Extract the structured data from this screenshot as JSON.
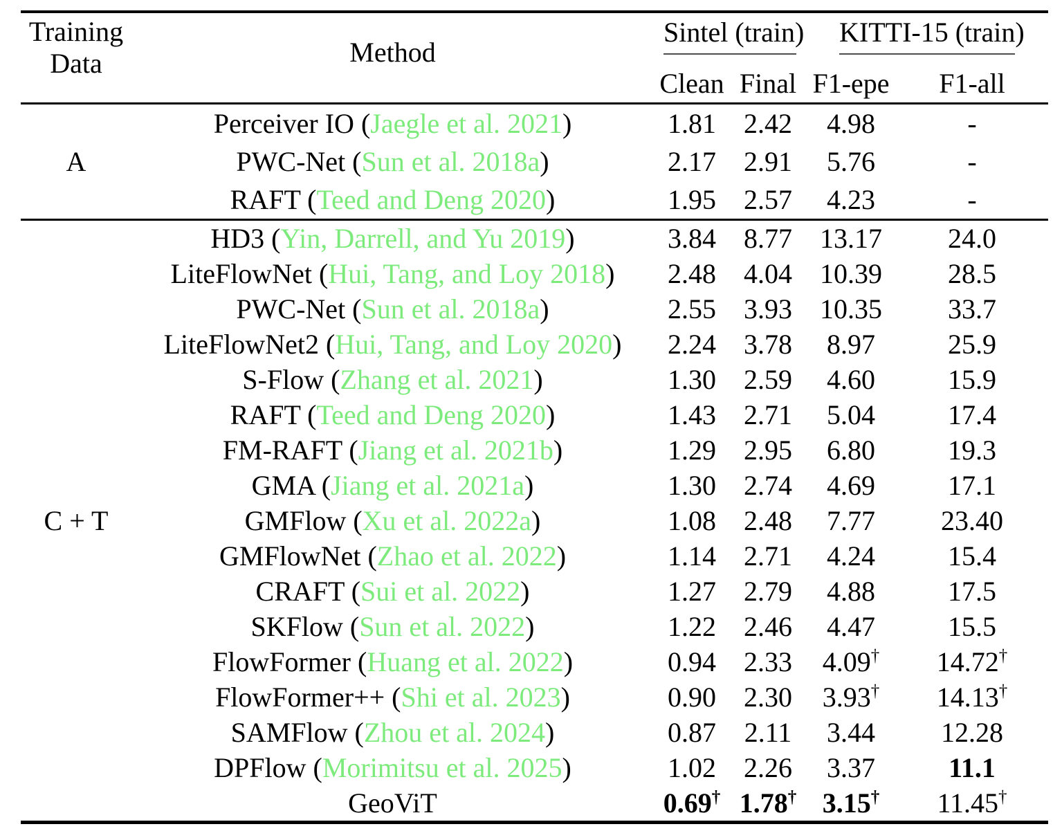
{
  "colors": {
    "citation": "#7CEB7C",
    "text": "#000000",
    "rule": "#000000"
  },
  "header": {
    "training_line1": "Training",
    "training_line2": "Data",
    "method": "Method",
    "groups": [
      {
        "label": "Sintel (train)"
      },
      {
        "label": "KITTI-15 (train)"
      }
    ],
    "sub_headers": [
      "Clean",
      "Final",
      "F1-epe",
      "F1-all"
    ]
  },
  "table": {
    "sections": [
      {
        "label": "A",
        "rows": [
          {
            "method_pre": "Perceiver IO (",
            "citation": "Jaegle et al. 2021",
            "method_post": ")",
            "values": [
              {
                "t": "1.81"
              },
              {
                "t": "2.42"
              },
              {
                "t": "4.98"
              },
              {
                "t": "-"
              }
            ]
          },
          {
            "method_pre": "PWC-Net (",
            "citation": "Sun et al. 2018a",
            "method_post": ")",
            "values": [
              {
                "t": "2.17"
              },
              {
                "t": "2.91"
              },
              {
                "t": "5.76"
              },
              {
                "t": "-"
              }
            ]
          },
          {
            "method_pre": "RAFT (",
            "citation": "Teed and Deng 2020",
            "method_post": ")",
            "values": [
              {
                "t": "1.95"
              },
              {
                "t": "2.57"
              },
              {
                "t": "4.23"
              },
              {
                "t": "-"
              }
            ]
          }
        ]
      },
      {
        "label": "C + T",
        "rows": [
          {
            "method_pre": "HD3 (",
            "citation": "Yin, Darrell, and Yu 2019",
            "method_post": ")",
            "values": [
              {
                "t": "3.84"
              },
              {
                "t": "8.77"
              },
              {
                "t": "13.17"
              },
              {
                "t": "24.0"
              }
            ]
          },
          {
            "method_pre": "LiteFlowNet (",
            "citation": "Hui, Tang, and Loy 2018",
            "method_post": ")",
            "values": [
              {
                "t": "2.48"
              },
              {
                "t": "4.04"
              },
              {
                "t": "10.39"
              },
              {
                "t": "28.5"
              }
            ]
          },
          {
            "method_pre": "PWC-Net (",
            "citation": "Sun et al. 2018a",
            "method_post": ")",
            "values": [
              {
                "t": "2.55"
              },
              {
                "t": "3.93"
              },
              {
                "t": "10.35"
              },
              {
                "t": "33.7"
              }
            ]
          },
          {
            "method_pre": "LiteFlowNet2 (",
            "citation": "Hui, Tang, and Loy 2020",
            "method_post": ")",
            "values": [
              {
                "t": "2.24"
              },
              {
                "t": "3.78"
              },
              {
                "t": "8.97"
              },
              {
                "t": "25.9"
              }
            ]
          },
          {
            "method_pre": "S-Flow (",
            "citation": "Zhang et al. 2021",
            "method_post": ")",
            "values": [
              {
                "t": "1.30"
              },
              {
                "t": "2.59"
              },
              {
                "t": "4.60"
              },
              {
                "t": "15.9"
              }
            ]
          },
          {
            "method_pre": "RAFT (",
            "citation": "Teed and Deng 2020",
            "method_post": ")",
            "values": [
              {
                "t": "1.43"
              },
              {
                "t": "2.71"
              },
              {
                "t": "5.04"
              },
              {
                "t": "17.4"
              }
            ]
          },
          {
            "method_pre": "FM-RAFT (",
            "citation": "Jiang et al. 2021b",
            "method_post": ")",
            "values": [
              {
                "t": "1.29"
              },
              {
                "t": "2.95"
              },
              {
                "t": "6.80"
              },
              {
                "t": "19.3"
              }
            ]
          },
          {
            "method_pre": "GMA (",
            "citation": "Jiang et al. 2021a",
            "method_post": ")",
            "values": [
              {
                "t": "1.30"
              },
              {
                "t": "2.74"
              },
              {
                "t": "4.69"
              },
              {
                "t": "17.1"
              }
            ]
          },
          {
            "method_pre": "GMFlow (",
            "citation": "Xu et al. 2022a",
            "method_post": ")",
            "values": [
              {
                "t": "1.08"
              },
              {
                "t": "2.48"
              },
              {
                "t": "7.77"
              },
              {
                "t": "23.40"
              }
            ]
          },
          {
            "method_pre": "GMFlowNet (",
            "citation": "Zhao et al. 2022",
            "method_post": ")",
            "values": [
              {
                "t": "1.14"
              },
              {
                "t": "2.71"
              },
              {
                "t": "4.24"
              },
              {
                "t": "15.4"
              }
            ]
          },
          {
            "method_pre": "CRAFT (",
            "citation": "Sui et al. 2022",
            "method_post": ")",
            "values": [
              {
                "t": "1.27"
              },
              {
                "t": "2.79"
              },
              {
                "t": "4.88"
              },
              {
                "t": "17.5"
              }
            ]
          },
          {
            "method_pre": "SKFlow (",
            "citation": "Sun et al. 2022",
            "method_post": ")",
            "values": [
              {
                "t": "1.22"
              },
              {
                "t": "2.46"
              },
              {
                "t": "4.47"
              },
              {
                "t": "15.5"
              }
            ]
          },
          {
            "method_pre": "FlowFormer (",
            "citation": "Huang et al. 2022",
            "method_post": ")",
            "values": [
              {
                "t": "0.94"
              },
              {
                "t": "2.33"
              },
              {
                "t": "4.09",
                "sup": "†"
              },
              {
                "t": "14.72",
                "sup": "†"
              }
            ]
          },
          {
            "method_pre": "FlowFormer++ (",
            "citation": "Shi et al. 2023",
            "method_post": ")",
            "values": [
              {
                "t": "0.90"
              },
              {
                "t": "2.30"
              },
              {
                "t": "3.93",
                "sup": "†"
              },
              {
                "t": "14.13",
                "sup": "†"
              }
            ]
          },
          {
            "method_pre": "SAMFlow (",
            "citation": "Zhou et al. 2024",
            "method_post": ")",
            "values": [
              {
                "t": "0.87"
              },
              {
                "t": "2.11"
              },
              {
                "t": "3.44"
              },
              {
                "t": "12.28"
              }
            ]
          },
          {
            "method_pre": "DPFlow (",
            "citation": "Morimitsu et al. 2025",
            "method_post": ")",
            "values": [
              {
                "t": "1.02"
              },
              {
                "t": "2.26"
              },
              {
                "t": "3.37"
              },
              {
                "t": "11.1",
                "b": true
              }
            ]
          },
          {
            "method_pre": "GeoViT",
            "citation": "",
            "method_post": "",
            "values": [
              {
                "t": "0.69",
                "sup": "†",
                "b": true
              },
              {
                "t": "1.78",
                "sup": "†",
                "b": true
              },
              {
                "t": "3.15",
                "sup": "†",
                "b": true
              },
              {
                "t": "11.45",
                "sup": "†"
              }
            ]
          }
        ]
      }
    ]
  }
}
